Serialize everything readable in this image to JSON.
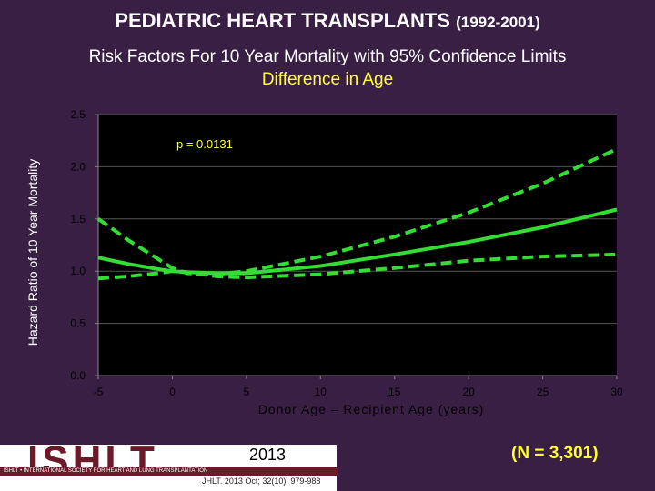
{
  "header": {
    "title_main": "PEDIATRIC HEART TRANSPLANTS",
    "title_years": "(1992-2001)",
    "subtitle": "Risk Factors For 10 Year Mortality with 95% Confidence Limits",
    "subtitle2": "Difference in Age"
  },
  "chart_data": {
    "type": "line",
    "xlabel": "Donor Age – Recipient Age (years)",
    "ylabel": "Hazard Ratio of 10 Year Mortality",
    "xlim": [
      -5,
      30
    ],
    "ylim": [
      0.0,
      2.5
    ],
    "xticks": [
      -5,
      0,
      5,
      10,
      15,
      20,
      25,
      30
    ],
    "yticks": [
      0.0,
      0.5,
      1.0,
      1.5,
      2.0,
      2.5
    ],
    "ytick_labels": [
      "0.0",
      "0.5",
      "1.0",
      "1.5",
      "2.0",
      "2.5"
    ],
    "annotation": "p = 0.0131",
    "grid": true,
    "colors": {
      "line": "#33dd33",
      "plot_bg": "#000000",
      "axis": "#888888"
    },
    "series": [
      {
        "style": "dashed",
        "x": [
          -5,
          -3,
          -1,
          0,
          1,
          3,
          5,
          10,
          15,
          20,
          25,
          30
        ],
        "y": [
          1.5,
          1.3,
          1.12,
          1.03,
          0.98,
          0.97,
          1.0,
          1.14,
          1.33,
          1.56,
          1.84,
          2.17
        ]
      },
      {
        "style": "solid",
        "x": [
          -5,
          -3,
          -1,
          0,
          1,
          3,
          5,
          10,
          15,
          20,
          25,
          30
        ],
        "y": [
          1.13,
          1.07,
          1.02,
          1.0,
          0.99,
          0.98,
          0.98,
          1.05,
          1.16,
          1.28,
          1.42,
          1.59
        ]
      },
      {
        "style": "dashed",
        "x": [
          -5,
          -3,
          -1,
          0,
          1,
          3,
          5,
          10,
          15,
          20,
          25,
          30
        ],
        "y": [
          0.93,
          0.95,
          0.98,
          1.0,
          0.99,
          0.95,
          0.94,
          0.97,
          1.03,
          1.1,
          1.14,
          1.16
        ]
      }
    ]
  },
  "footer": {
    "logo_text": "ISHLT",
    "logo_band": "ISHLT • INTERNATIONAL SOCIETY FOR HEART AND LUNG TRANSPLANTATION",
    "year": "2013",
    "citation": "JHLT. 2013 Oct; 32(10): 979-988",
    "n_label": "(N = 3,301)"
  }
}
